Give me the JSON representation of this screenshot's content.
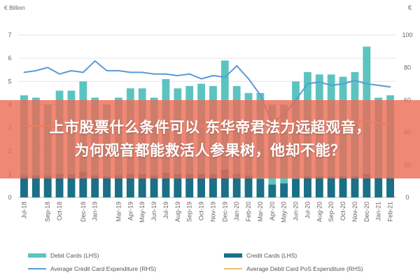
{
  "chart_data": {
    "type": "bar",
    "units_left": "€ Billion",
    "units_right": "€",
    "categories": [
      "Jul-18",
      "Aug-18",
      "Sep-18",
      "Oct-18",
      "Nov-18",
      "Dec-18",
      "Jan-19",
      "Feb-19",
      "Mar-19",
      "Apr-19",
      "May-19",
      "Jun-19",
      "Jul-19",
      "Aug-19",
      "Sep-19",
      "Oct-19",
      "Nov-19",
      "Dec-19",
      "Jan-20",
      "Feb-20",
      "Mar-20",
      "Apr-20",
      "May-20",
      "Jun-20",
      "Jul-20",
      "Aug-20",
      "Sep-20",
      "Oct-20",
      "Nov-20",
      "Dec-20",
      "Jan-21",
      "Feb-21"
    ],
    "x_tick_labels": [
      "Jul-18",
      "Sep-18",
      "Oct-18",
      "Dec-18",
      "Jan-19",
      "Mar-19",
      "Apr-19",
      "May-19",
      "Jun-19",
      "Jul-19",
      "Aug-19",
      "Sep-19",
      "Oct-19",
      "Nov-19",
      "Dec-19",
      "Jan-20",
      "Feb-20",
      "Mar-20",
      "Apr-20",
      "May-20",
      "Jun-20",
      "Jul-20",
      "Aug-20",
      "Sep-20",
      "Oct-20",
      "Nov-20",
      "Dec-20",
      "Jan-21",
      "Feb-21"
    ],
    "ylim_left": [
      0,
      7
    ],
    "ylim_right": [
      0,
      100
    ],
    "yticks_left": [
      0,
      1,
      2,
      3,
      4,
      5,
      6,
      7
    ],
    "yticks_right": [
      0,
      20,
      40,
      60,
      80,
      100
    ],
    "grid": true,
    "legend_position": "bottom",
    "series": [
      {
        "name": "Debit Cards (LHS)",
        "type": "bar",
        "axis": "left",
        "color": "#5cc4c0",
        "values": [
          4.4,
          4.3,
          4.0,
          4.6,
          4.6,
          5.0,
          4.3,
          4.0,
          4.3,
          4.7,
          4.7,
          4.3,
          5.1,
          4.7,
          4.8,
          4.9,
          4.8,
          5.9,
          4.8,
          4.5,
          4.5,
          4.0,
          4.0,
          5.0,
          5.4,
          5.3,
          5.3,
          5.2,
          5.4,
          6.5,
          4.3,
          4.4
        ]
      },
      {
        "name": "Credit Cards (LHS)",
        "type": "bar",
        "axis": "left",
        "color": "#1b6f86",
        "values": [
          0.95,
          0.95,
          0.95,
          1.0,
          1.0,
          1.1,
          0.95,
          0.9,
          0.95,
          1.0,
          1.0,
          0.95,
          1.05,
          1.0,
          1.0,
          1.0,
          1.0,
          1.2,
          1.0,
          0.95,
          0.8,
          0.55,
          0.6,
          0.8,
          0.9,
          0.9,
          0.9,
          0.9,
          0.9,
          1.0,
          0.85,
          0.85
        ]
      },
      {
        "name": "Average Credit Card Expenditure (RHS)",
        "type": "line",
        "axis": "right",
        "color": "#5b9bd5",
        "values": [
          77,
          78,
          80,
          76,
          78,
          77,
          84,
          78,
          78,
          77,
          77,
          76,
          76,
          75,
          76,
          73,
          75,
          74,
          81,
          73,
          63,
          46,
          51,
          60,
          70,
          71,
          69,
          70,
          72,
          70,
          69,
          68
        ]
      },
      {
        "name": "Average Debit Card PoS Expenditure (RHS)",
        "type": "line",
        "axis": "right",
        "color": "#e8c170",
        "values": [
          44,
          44,
          44,
          43,
          44,
          45,
          42,
          43,
          44,
          44,
          44,
          44,
          45,
          44,
          44,
          44,
          45,
          46,
          43,
          43,
          45,
          47,
          46,
          46,
          47,
          46,
          46,
          46,
          46,
          47,
          46,
          45
        ]
      }
    ]
  },
  "overlay": {
    "line1": "上市股票什么条件可以 东华帝君法力远超观音，",
    "line2": "为何观音都能救活人参果树，他却不能？"
  }
}
